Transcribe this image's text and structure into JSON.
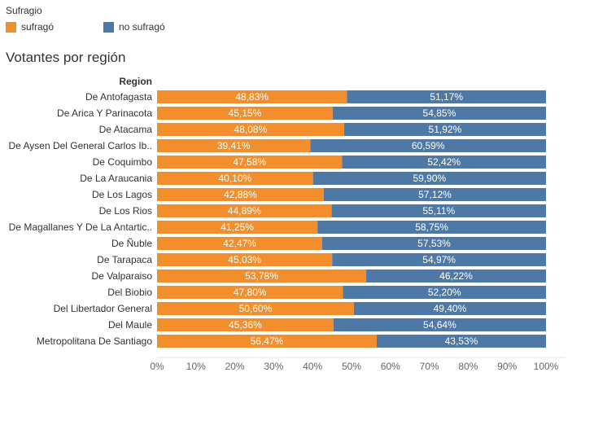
{
  "legend": {
    "title": "Sufragio",
    "items": [
      {
        "label": "sufragó",
        "color": "#f28e2b"
      },
      {
        "label": "no sufragó",
        "color": "#4e79a7"
      }
    ]
  },
  "chart_data": {
    "type": "bar",
    "orientation": "horizontal",
    "stacked": true,
    "normalized": true,
    "title": "Votantes por región",
    "ylabel": "Region",
    "xlabel": "",
    "xlim": [
      0,
      100
    ],
    "xticks": [
      "0%",
      "10%",
      "20%",
      "30%",
      "40%",
      "50%",
      "60%",
      "70%",
      "80%",
      "90%",
      "100%"
    ],
    "categories": [
      "De Antofagasta",
      "De Arica Y Parinacota",
      "De Atacama",
      "De Aysen Del General Carlos Ib..",
      "De Coquimbo",
      "De La Araucania",
      "De Los Lagos",
      "De Los Rios",
      "De Magallanes Y De La Antartic..",
      "De Ñuble",
      "De Tarapaca",
      "De Valparaiso",
      "Del Biobio",
      "Del Libertador General",
      "Del Maule",
      "Metropolitana De Santiago"
    ],
    "series": [
      {
        "name": "sufragó",
        "color": "#f28e2b",
        "values": [
          48.83,
          45.15,
          48.08,
          39.41,
          47.58,
          40.1,
          42.88,
          44.89,
          41.25,
          42.47,
          45.03,
          53.78,
          47.8,
          50.6,
          45.36,
          56.47
        ],
        "labels": [
          "48,83%",
          "45,15%",
          "48,08%",
          "39,41%",
          "47,58%",
          "40,10%",
          "42,88%",
          "44,89%",
          "41,25%",
          "42,47%",
          "45,03%",
          "53,78%",
          "47,80%",
          "50,60%",
          "45,36%",
          "56,47%"
        ]
      },
      {
        "name": "no sufragó",
        "color": "#4e79a7",
        "values": [
          51.17,
          54.85,
          51.92,
          60.59,
          52.42,
          59.9,
          57.12,
          55.11,
          58.75,
          57.53,
          54.97,
          46.22,
          52.2,
          49.4,
          54.64,
          43.53
        ],
        "labels": [
          "51,17%",
          "54,85%",
          "51,92%",
          "60,59%",
          "52,42%",
          "59,90%",
          "57,12%",
          "55,11%",
          "58,75%",
          "57,53%",
          "54,97%",
          "46,22%",
          "52,20%",
          "49,40%",
          "54,64%",
          "43,53%"
        ]
      }
    ]
  }
}
